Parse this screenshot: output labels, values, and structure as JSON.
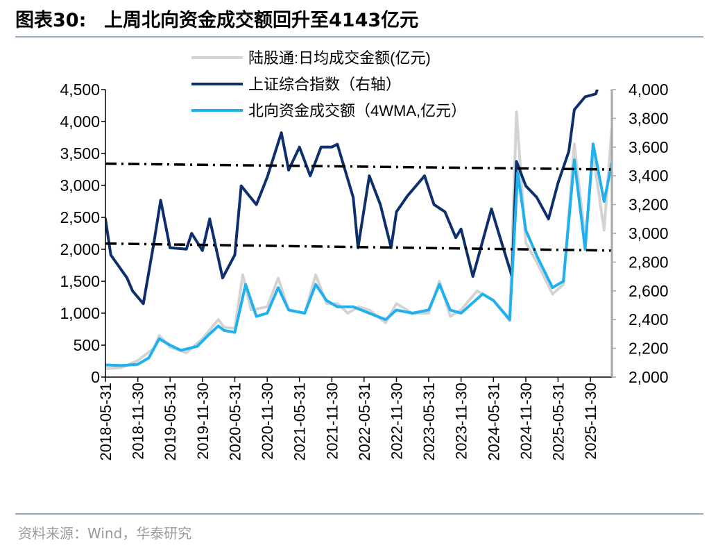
{
  "figure": {
    "label": "图表30:",
    "title": "上周北向资金成交额回升至4143亿元",
    "source": "资料来源：Wind，华泰研究"
  },
  "colors": {
    "daily": "#d3d3d3",
    "index": "#0d2f6d",
    "wma": "#1fb0ee",
    "trend": "#000000",
    "axis": "#000000",
    "rule": "#8fa9c6"
  },
  "chart_data": {
    "type": "line",
    "legend_placement": "top-center",
    "grid": false,
    "x_tick_labels": [
      "2018-05-31",
      "2018-11-30",
      "2019-05-31",
      "2019-11-30",
      "2020-05-31",
      "2020-11-30",
      "2021-05-31",
      "2021-11-30",
      "2022-05-31",
      "2022-11-30",
      "2023-05-31",
      "2023-11-30",
      "2024-05-31",
      "2024-11-30",
      "2025-05-31",
      "2025-11-30"
    ],
    "x_range": [
      "2018-05-31",
      "2026-03-31"
    ],
    "y_left": {
      "range": [
        0,
        4500
      ],
      "ticks": [
        0,
        500,
        1000,
        1500,
        2000,
        2500,
        3000,
        3500,
        4000,
        4500
      ],
      "tick_labels": [
        "0",
        "500",
        "1,000",
        "1,500",
        "2,000",
        "2,500",
        "3,000",
        "3,500",
        "4,000",
        "4,500"
      ]
    },
    "y_right": {
      "range": [
        2000,
        4000
      ],
      "ticks": [
        2000,
        2200,
        2400,
        2600,
        2800,
        3000,
        3200,
        3400,
        3600,
        3800,
        4000
      ],
      "tick_labels": [
        "2,000",
        "2,200",
        "2,400",
        "2,600",
        "2,800",
        "3,000",
        "3,200",
        "3,400",
        "3,600",
        "3,800",
        "4,000"
      ]
    },
    "series": [
      {
        "name": "陆股通:日均成交金额(亿元)",
        "axis": "left",
        "style": "daily",
        "points": [
          [
            "2018-05-31",
            130
          ],
          [
            "2018-08-31",
            150
          ],
          [
            "2018-11-30",
            260
          ],
          [
            "2019-02-28",
            450
          ],
          [
            "2019-03-31",
            650
          ],
          [
            "2019-05-31",
            470
          ],
          [
            "2019-08-31",
            380
          ],
          [
            "2019-11-30",
            600
          ],
          [
            "2020-02-28",
            900
          ],
          [
            "2020-03-31",
            780
          ],
          [
            "2020-05-31",
            760
          ],
          [
            "2020-07-15",
            1600
          ],
          [
            "2020-08-31",
            1050
          ],
          [
            "2020-11-30",
            1100
          ],
          [
            "2021-01-31",
            1550
          ],
          [
            "2021-03-31",
            1050
          ],
          [
            "2021-06-30",
            1000
          ],
          [
            "2021-08-31",
            1600
          ],
          [
            "2021-10-31",
            1150
          ],
          [
            "2021-12-31",
            1150
          ],
          [
            "2022-02-28",
            1000
          ],
          [
            "2022-04-30",
            1100
          ],
          [
            "2022-06-30",
            1050
          ],
          [
            "2022-09-30",
            850
          ],
          [
            "2022-11-30",
            1150
          ],
          [
            "2023-02-28",
            1000
          ],
          [
            "2023-05-31",
            1000
          ],
          [
            "2023-07-31",
            1500
          ],
          [
            "2023-09-30",
            950
          ],
          [
            "2023-11-30",
            1050
          ],
          [
            "2024-02-29",
            1350
          ],
          [
            "2024-05-31",
            1200
          ],
          [
            "2024-08-31",
            880
          ],
          [
            "2024-10-08",
            4150
          ],
          [
            "2024-11-30",
            2100
          ],
          [
            "2025-01-31",
            1800
          ],
          [
            "2025-04-30",
            1300
          ],
          [
            "2025-06-30",
            1450
          ],
          [
            "2025-08-31",
            3650
          ],
          [
            "2025-10-31",
            2150
          ],
          [
            "2025-12-15",
            3500
          ],
          [
            "2026-02-15",
            2300
          ],
          [
            "2026-03-31",
            3900
          ]
        ]
      },
      {
        "name": "上证综合指数（右轴）",
        "axis": "right",
        "style": "index",
        "points": [
          [
            "2018-05-31",
            3100
          ],
          [
            "2018-06-30",
            2850
          ],
          [
            "2018-09-30",
            2690
          ],
          [
            "2018-10-31",
            2600
          ],
          [
            "2018-12-31",
            2510
          ],
          [
            "2019-02-28",
            2930
          ],
          [
            "2019-04-08",
            3230
          ],
          [
            "2019-05-31",
            2900
          ],
          [
            "2019-08-31",
            2890
          ],
          [
            "2019-09-30",
            3000
          ],
          [
            "2019-11-30",
            2880
          ],
          [
            "2020-01-10",
            3100
          ],
          [
            "2020-03-23",
            2690
          ],
          [
            "2020-05-31",
            2850
          ],
          [
            "2020-07-06",
            3330
          ],
          [
            "2020-09-30",
            3200
          ],
          [
            "2020-11-30",
            3390
          ],
          [
            "2021-02-18",
            3700
          ],
          [
            "2021-03-31",
            3440
          ],
          [
            "2021-05-31",
            3600
          ],
          [
            "2021-07-31",
            3400
          ],
          [
            "2021-09-30",
            3600
          ],
          [
            "2021-11-30",
            3600
          ],
          [
            "2021-12-31",
            3620
          ],
          [
            "2022-03-31",
            3250
          ],
          [
            "2022-04-27",
            2900
          ],
          [
            "2022-06-30",
            3400
          ],
          [
            "2022-08-31",
            3200
          ],
          [
            "2022-10-31",
            2900
          ],
          [
            "2022-11-30",
            3150
          ],
          [
            "2023-01-31",
            3260
          ],
          [
            "2023-05-08",
            3400
          ],
          [
            "2023-06-30",
            3200
          ],
          [
            "2023-08-31",
            3150
          ],
          [
            "2023-10-31",
            2970
          ],
          [
            "2023-11-30",
            3030
          ],
          [
            "2024-02-05",
            2700
          ],
          [
            "2024-05-20",
            3170
          ],
          [
            "2024-06-30",
            3000
          ],
          [
            "2024-09-13",
            2700
          ],
          [
            "2024-10-08",
            3500
          ],
          [
            "2024-11-30",
            3330
          ],
          [
            "2025-01-31",
            3250
          ],
          [
            "2025-04-07",
            3100
          ],
          [
            "2025-05-31",
            3350
          ],
          [
            "2025-07-31",
            3570
          ],
          [
            "2025-08-31",
            3860
          ],
          [
            "2025-10-31",
            3950
          ],
          [
            "2025-12-31",
            3970
          ],
          [
            "2026-01-31",
            4100
          ],
          [
            "2026-03-31",
            4000
          ]
        ]
      },
      {
        "name": "北向资金成交额（4WMA,亿元）",
        "axis": "left",
        "style": "wma",
        "points": [
          [
            "2018-05-31",
            190
          ],
          [
            "2018-08-31",
            180
          ],
          [
            "2018-11-30",
            200
          ],
          [
            "2019-01-31",
            300
          ],
          [
            "2019-03-31",
            600
          ],
          [
            "2019-05-31",
            500
          ],
          [
            "2019-07-31",
            420
          ],
          [
            "2019-10-31",
            480
          ],
          [
            "2019-12-31",
            650
          ],
          [
            "2020-02-28",
            800
          ],
          [
            "2020-03-31",
            730
          ],
          [
            "2020-05-31",
            700
          ],
          [
            "2020-07-31",
            1450
          ],
          [
            "2020-09-30",
            950
          ],
          [
            "2020-11-30",
            1000
          ],
          [
            "2021-01-31",
            1400
          ],
          [
            "2021-03-31",
            1050
          ],
          [
            "2021-06-30",
            1000
          ],
          [
            "2021-08-31",
            1450
          ],
          [
            "2021-10-31",
            1200
          ],
          [
            "2021-12-31",
            1100
          ],
          [
            "2022-03-31",
            1100
          ],
          [
            "2022-06-30",
            1000
          ],
          [
            "2022-09-30",
            900
          ],
          [
            "2022-11-30",
            1050
          ],
          [
            "2023-02-28",
            1000
          ],
          [
            "2023-05-31",
            1050
          ],
          [
            "2023-07-31",
            1450
          ],
          [
            "2023-09-30",
            1050
          ],
          [
            "2023-11-30",
            1000
          ],
          [
            "2024-03-31",
            1300
          ],
          [
            "2024-05-31",
            1200
          ],
          [
            "2024-08-31",
            900
          ],
          [
            "2024-10-15",
            3200
          ],
          [
            "2024-11-30",
            2300
          ],
          [
            "2025-01-31",
            1900
          ],
          [
            "2025-04-30",
            1400
          ],
          [
            "2025-06-30",
            1500
          ],
          [
            "2025-08-31",
            3400
          ],
          [
            "2025-10-31",
            2000
          ],
          [
            "2025-12-15",
            3650
          ],
          [
            "2026-02-15",
            2750
          ],
          [
            "2026-03-31",
            3350
          ]
        ]
      },
      {
        "axis": "left",
        "style": "trend",
        "points": [
          [
            "2018-05-31",
            3340
          ],
          [
            "2026-03-31",
            3250
          ]
        ]
      },
      {
        "axis": "left",
        "style": "trend",
        "points": [
          [
            "2018-05-31",
            2090
          ],
          [
            "2026-03-31",
            1980
          ]
        ]
      }
    ]
  }
}
